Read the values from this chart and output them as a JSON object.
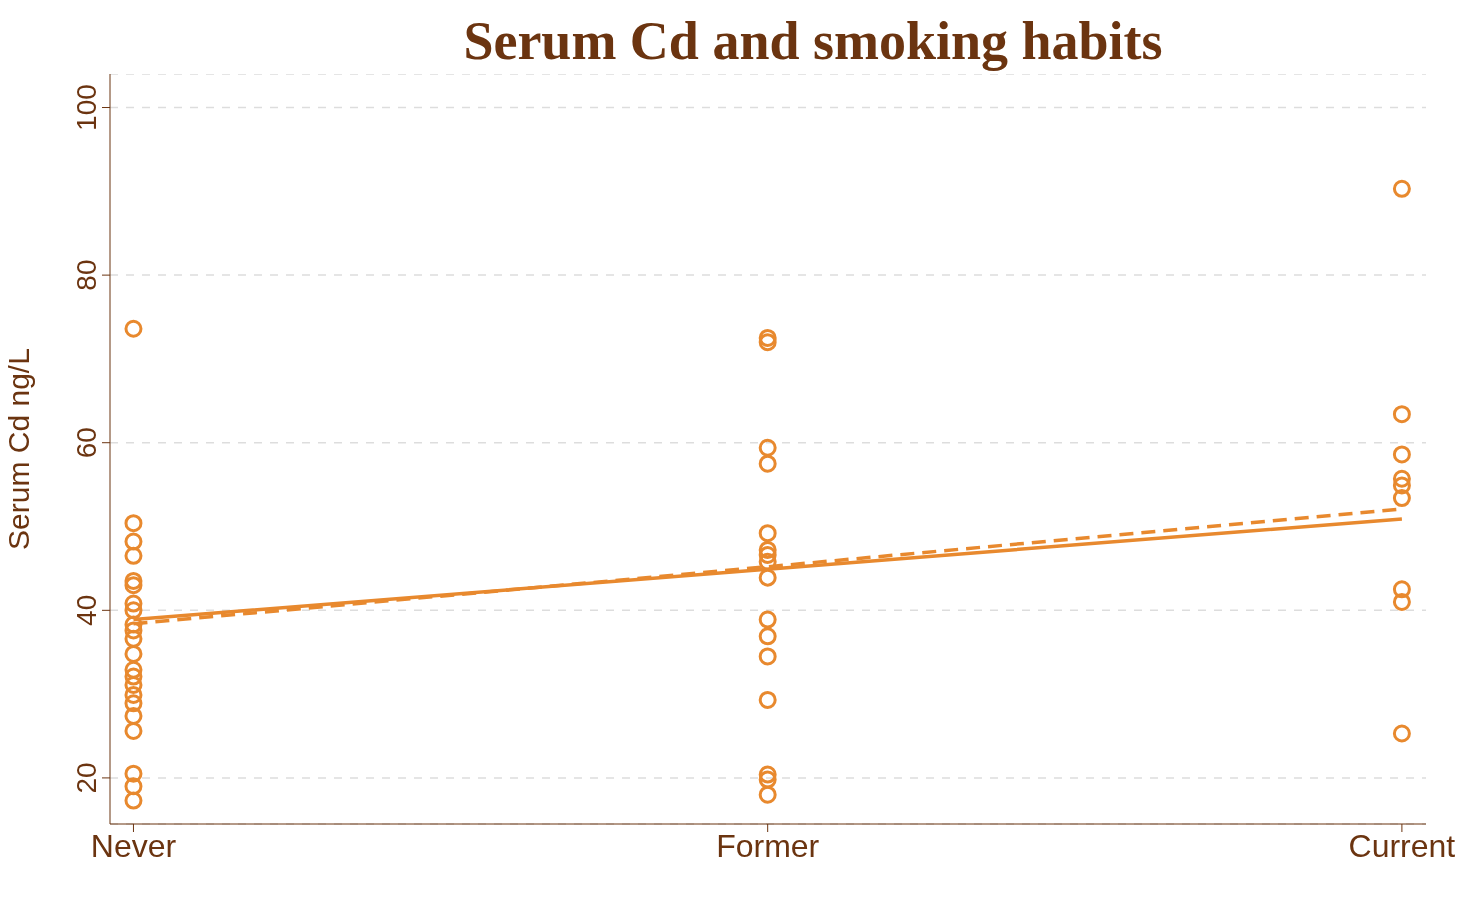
{
  "chart_data": {
    "type": "scatter",
    "title": "Serum Cd and smoking habits",
    "ylabel": "Serum Cd ng/L",
    "categories": [
      "Never",
      "Former",
      "Current"
    ],
    "ylim": [
      14.5,
      104
    ],
    "yticks": [
      20,
      40,
      60,
      80,
      100
    ],
    "grid": "y",
    "series": [
      {
        "marker": "circle",
        "color": "#e8892e",
        "x": [
          "Never",
          "Never",
          "Never",
          "Never",
          "Never",
          "Never",
          "Never",
          "Never",
          "Never",
          "Never",
          "Never",
          "Never",
          "Never",
          "Never",
          "Never",
          "Never",
          "Never",
          "Never",
          "Never",
          "Never",
          "Never",
          "Never",
          "Former",
          "Former",
          "Former",
          "Former",
          "Former",
          "Former",
          "Former",
          "Former",
          "Former",
          "Former",
          "Former",
          "Former",
          "Former",
          "Former",
          "Former",
          "Former",
          "Current",
          "Current",
          "Current",
          "Current",
          "Current",
          "Current",
          "Current",
          "Current",
          "Current"
        ],
        "values": [
          73.6,
          50.4,
          48.2,
          46.5,
          43.5,
          43,
          40.8,
          40,
          38.3,
          37.6,
          36.6,
          34.8,
          32.9,
          32.1,
          31.1,
          29.9,
          28.9,
          27.4,
          25.6,
          20.5,
          19,
          17.3,
          72.5,
          72,
          59.4,
          57.5,
          49.2,
          47.2,
          46.6,
          45.8,
          43.9,
          38.9,
          36.9,
          34.5,
          29.3,
          20.4,
          19.8,
          18,
          90.3,
          63.4,
          58.6,
          55.7,
          54.9,
          53.4,
          42.5,
          41,
          25.3
        ]
      },
      {
        "type": "line",
        "marker": "none",
        "color": "#e8892e",
        "line_style": "solid",
        "x": [
          "Never",
          "Former",
          "Current"
        ],
        "values": [
          38.9,
          44.9,
          50.9
        ]
      },
      {
        "type": "line",
        "marker": "none",
        "color": "#e8892e",
        "line_style": "dashed",
        "x": [
          "Never",
          "Former",
          "Current"
        ],
        "values": [
          38.4,
          45.2,
          52.1
        ]
      }
    ]
  }
}
